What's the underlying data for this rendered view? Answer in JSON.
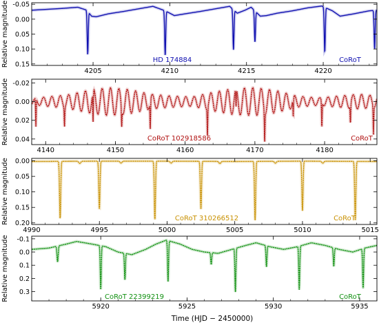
{
  "figure": {
    "ylabel": "Relative magnitude",
    "xlabel": "Time  (HJD − 2450000)"
  },
  "chart_data": [
    {
      "type": "line",
      "id": "hd174884",
      "color": "#1010b0",
      "name": "HD 174884",
      "source": "CoRoT",
      "xlim": [
        4201.0,
        4223.5
      ],
      "ylim": [
        0.155,
        -0.055
      ],
      "y_inverted": true,
      "xticks": [
        4205,
        4210,
        4215,
        4220
      ],
      "yticks": [
        -0.05,
        0.0,
        0.05,
        0.1,
        0.15
      ],
      "ytick_labels": [
        "-0.05",
        "0.00",
        "0.05",
        "0.10",
        "0.15"
      ],
      "baseline": [
        [
          4201.0,
          -0.03
        ],
        [
          4202.0,
          -0.033
        ],
        [
          4203.0,
          -0.036
        ],
        [
          4204.0,
          -0.04
        ],
        [
          4204.6,
          -0.03
        ],
        [
          4204.9,
          -0.01
        ],
        [
          4205.2,
          -0.008
        ],
        [
          4206.0,
          -0.018
        ],
        [
          4207.0,
          -0.026
        ],
        [
          4208.0,
          -0.035
        ],
        [
          4208.9,
          -0.043
        ],
        [
          4209.7,
          -0.028
        ],
        [
          4210.3,
          -0.012
        ],
        [
          4211.0,
          -0.018
        ],
        [
          4212.0,
          -0.026
        ],
        [
          4213.0,
          -0.035
        ],
        [
          4213.9,
          -0.043
        ],
        [
          4214.4,
          -0.02
        ],
        [
          4214.9,
          -0.03
        ],
        [
          4215.3,
          -0.04
        ],
        [
          4215.9,
          -0.01
        ],
        [
          4216.3,
          -0.012
        ],
        [
          4217.0,
          -0.02
        ],
        [
          4218.0,
          -0.028
        ],
        [
          4219.0,
          -0.038
        ],
        [
          4219.9,
          -0.044
        ],
        [
          4220.6,
          -0.028
        ],
        [
          4221.1,
          -0.01
        ],
        [
          4222.0,
          -0.018
        ],
        [
          4223.0,
          -0.028
        ],
        [
          4223.5,
          -0.03
        ]
      ],
      "eclipses": [
        {
          "t": 4204.65,
          "depth": 0.145,
          "width": 0.12
        },
        {
          "t": 4209.7,
          "depth": 0.15,
          "width": 0.12
        },
        {
          "t": 4214.15,
          "depth": 0.135,
          "width": 0.12
        },
        {
          "t": 4215.55,
          "depth": 0.105,
          "width": 0.12
        },
        {
          "t": 4220.1,
          "depth": 0.15,
          "width": 0.12
        },
        {
          "t": 4223.35,
          "depth": 0.13,
          "width": 0.12
        }
      ]
    },
    {
      "type": "line",
      "id": "corot102918586",
      "color": "#b01010",
      "name": "CoRoT 102918586",
      "source": "CoRoT",
      "xlim": [
        4138.0,
        4187.5
      ],
      "ylim": [
        0.046,
        -0.024
      ],
      "y_inverted": true,
      "xticks": [
        4140,
        4150,
        4160,
        4170,
        4180
      ],
      "yticks": [
        -0.02,
        0.0,
        0.02,
        0.04
      ],
      "ytick_labels": [
        "-0.02",
        "0.00",
        "0.02",
        "0.04"
      ],
      "pulsation_period": 1.2,
      "pulsation_envelope": [
        [
          4138.0,
          0.003
        ],
        [
          4140.0,
          0.005
        ],
        [
          4143.0,
          0.007
        ],
        [
          4146.0,
          0.012
        ],
        [
          4149.0,
          0.015
        ],
        [
          4152.0,
          0.013
        ],
        [
          4155.0,
          0.008
        ],
        [
          4158.0,
          0.006
        ],
        [
          4161.0,
          0.005
        ],
        [
          4164.0,
          0.01
        ],
        [
          4167.0,
          0.014
        ],
        [
          4170.0,
          0.015
        ],
        [
          4173.0,
          0.012
        ],
        [
          4176.0,
          0.006
        ],
        [
          4179.0,
          0.004
        ],
        [
          4182.0,
          0.006
        ],
        [
          4185.0,
          0.008
        ],
        [
          4187.5,
          0.006
        ]
      ],
      "eclipses": [
        {
          "t": 4138.6,
          "depth": 0.03,
          "width": 0.15
        },
        {
          "t": 4142.7,
          "depth": 0.02,
          "width": 0.15
        },
        {
          "t": 4146.8,
          "depth": 0.033,
          "width": 0.15
        },
        {
          "t": 4150.9,
          "depth": 0.02,
          "width": 0.15
        },
        {
          "t": 4155.0,
          "depth": 0.03,
          "width": 0.15
        },
        {
          "t": 4163.2,
          "depth": 0.03,
          "width": 0.15
        },
        {
          "t": 4167.3,
          "depth": 0.02,
          "width": 0.15
        },
        {
          "t": 4171.4,
          "depth": 0.032,
          "width": 0.15
        },
        {
          "t": 4175.5,
          "depth": 0.02,
          "width": 0.15
        },
        {
          "t": 4179.6,
          "depth": 0.028,
          "width": 0.15
        },
        {
          "t": 4183.7,
          "depth": 0.02,
          "width": 0.15
        },
        {
          "t": 4187.0,
          "depth": 0.03,
          "width": 0.15
        }
      ]
    },
    {
      "type": "line",
      "id": "corot310266512",
      "color": "#c89000",
      "name": "CoRoT 310266512",
      "source": "CoRoT",
      "xlim": [
        4990.0,
        5015.5
      ],
      "ylim": [
        0.205,
        -0.008
      ],
      "y_inverted": true,
      "xticks": [
        4990,
        4995,
        5000,
        5005,
        5010,
        5015
      ],
      "yticks": [
        0.0,
        0.05,
        0.1,
        0.15,
        0.2
      ],
      "ytick_labels": [
        "0.00",
        "0.05",
        "0.10",
        "0.15",
        "0.20"
      ],
      "baseline": [
        [
          4990.0,
          0.002
        ],
        [
          4995.0,
          0.001
        ],
        [
          5000.0,
          0.001
        ],
        [
          5005.0,
          0.002
        ],
        [
          5010.0,
          0.001
        ],
        [
          5015.5,
          0.002
        ]
      ],
      "eclipses": [
        {
          "t": 4992.1,
          "depth": 0.185,
          "width": 0.15
        },
        {
          "t": 4993.55,
          "depth": 0.007,
          "width": 0.25
        },
        {
          "t": 4995.0,
          "depth": 0.155,
          "width": 0.15
        },
        {
          "t": 4996.6,
          "depth": 0.006,
          "width": 0.25
        },
        {
          "t": 4999.1,
          "depth": 0.19,
          "width": 0.15
        },
        {
          "t": 5000.3,
          "depth": 0.006,
          "width": 0.25
        },
        {
          "t": 5002.5,
          "depth": 0.155,
          "width": 0.15
        },
        {
          "t": 5003.9,
          "depth": 0.007,
          "width": 0.25
        },
        {
          "t": 5006.5,
          "depth": 0.19,
          "width": 0.15
        },
        {
          "t": 5008.0,
          "depth": 0.006,
          "width": 0.25
        },
        {
          "t": 5010.0,
          "depth": 0.16,
          "width": 0.15
        },
        {
          "t": 5011.5,
          "depth": 0.006,
          "width": 0.25
        },
        {
          "t": 5013.9,
          "depth": 0.19,
          "width": 0.15
        }
      ]
    },
    {
      "type": "line",
      "id": "corot22399219",
      "color": "#109010",
      "name": "CoRoT 22399219",
      "source": "CoRoT",
      "xlim": [
        5916.0,
        5936.0
      ],
      "ylim": [
        0.37,
        -0.12
      ],
      "y_inverted": true,
      "xticks": [
        5920,
        5925,
        5930,
        5935
      ],
      "yticks": [
        -0.1,
        0.0,
        0.1,
        0.2,
        0.3
      ],
      "ytick_labels": [
        "-0.1",
        "0.0",
        "0.1",
        "0.2",
        "0.3"
      ],
      "baseline": [
        [
          5916.0,
          -0.02
        ],
        [
          5917.0,
          -0.03
        ],
        [
          5918.0,
          -0.06
        ],
        [
          5918.6,
          -0.08
        ],
        [
          5919.5,
          -0.06
        ],
        [
          5920.3,
          -0.04
        ],
        [
          5921.0,
          0.0
        ],
        [
          5921.8,
          0.02
        ],
        [
          5922.6,
          -0.02
        ],
        [
          5923.2,
          -0.06
        ],
        [
          5923.8,
          -0.09
        ],
        [
          5924.6,
          -0.06
        ],
        [
          5925.3,
          -0.02
        ],
        [
          5926.0,
          0.0
        ],
        [
          5926.8,
          0.01
        ],
        [
          5927.6,
          -0.02
        ],
        [
          5928.4,
          -0.05
        ],
        [
          5929.0,
          -0.07
        ],
        [
          5929.8,
          -0.04
        ],
        [
          5930.6,
          -0.02
        ],
        [
          5931.4,
          -0.04
        ],
        [
          5932.2,
          -0.07
        ],
        [
          5933.0,
          -0.05
        ],
        [
          5933.8,
          -0.02
        ],
        [
          5934.6,
          0.0
        ],
        [
          5935.3,
          -0.03
        ],
        [
          5936.0,
          -0.05
        ]
      ],
      "eclipses": [
        {
          "t": 5917.5,
          "depth": 0.12,
          "width": 0.12
        },
        {
          "t": 5920.0,
          "depth": 0.33,
          "width": 0.1
        },
        {
          "t": 5921.4,
          "depth": 0.2,
          "width": 0.1
        },
        {
          "t": 5923.9,
          "depth": 0.31,
          "width": 0.1
        },
        {
          "t": 5926.4,
          "depth": 0.09,
          "width": 0.1
        },
        {
          "t": 5927.8,
          "depth": 0.33,
          "width": 0.1
        },
        {
          "t": 5929.6,
          "depth": 0.16,
          "width": 0.1
        },
        {
          "t": 5931.5,
          "depth": 0.33,
          "width": 0.1
        },
        {
          "t": 5933.5,
          "depth": 0.14,
          "width": 0.1
        },
        {
          "t": 5935.2,
          "depth": 0.3,
          "width": 0.1
        }
      ]
    }
  ]
}
